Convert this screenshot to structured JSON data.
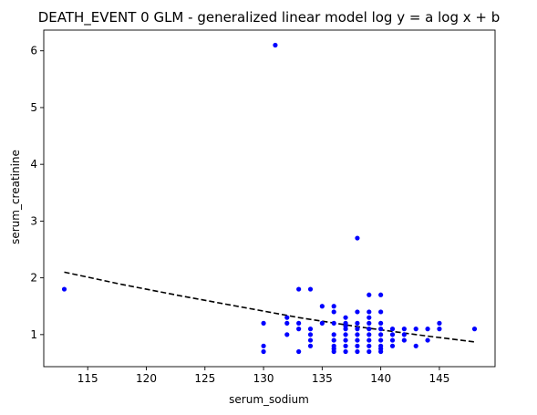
{
  "chart_data": {
    "type": "scatter",
    "title": "DEATH_EVENT 0 GLM - generalized linear model  log y = a log x + b",
    "xlabel": "serum_sodium",
    "ylabel": "serum_creatinine",
    "xlim": [
      111.25,
      149.75
    ],
    "ylim": [
      0.435,
      6.365
    ],
    "xticks": [
      115,
      120,
      125,
      130,
      135,
      140,
      145
    ],
    "yticks": [
      1,
      2,
      3,
      4,
      5,
      6
    ],
    "grid": false,
    "legend": "none",
    "colors": {
      "points": "#0000ff",
      "fit_line": "#000000"
    },
    "series": [
      {
        "kind": "points",
        "x": [
          113,
          131,
          138,
          130,
          130,
          130,
          132,
          132,
          132,
          133,
          133,
          133,
          133,
          134,
          134,
          134,
          134,
          134,
          135,
          135,
          136,
          136,
          136,
          136,
          136,
          136,
          136,
          136,
          137,
          137,
          137,
          137,
          137,
          137,
          137,
          137,
          138,
          138,
          138,
          138,
          138,
          138,
          138,
          139,
          139,
          139,
          139,
          139,
          139,
          139,
          139,
          139,
          140,
          140,
          140,
          140,
          140,
          140,
          140,
          140,
          140,
          141,
          141,
          141,
          141,
          142,
          142,
          142,
          143,
          143,
          144,
          144,
          145,
          145,
          148
        ],
        "y": [
          1.8,
          6.1,
          2.7,
          1.2,
          0.8,
          0.7,
          1.3,
          1.2,
          1.0,
          1.8,
          1.2,
          1.1,
          0.7,
          1.8,
          1.1,
          1.0,
          0.9,
          0.8,
          1.5,
          1.2,
          1.5,
          1.4,
          1.2,
          1.0,
          0.9,
          0.8,
          0.75,
          0.7,
          1.3,
          1.2,
          1.15,
          1.1,
          1.0,
          0.9,
          0.8,
          0.7,
          1.4,
          1.2,
          1.1,
          1.0,
          0.9,
          0.8,
          0.7,
          1.7,
          1.4,
          1.3,
          1.2,
          1.1,
          1.0,
          0.9,
          0.8,
          0.7,
          1.7,
          1.4,
          1.2,
          1.1,
          1.0,
          0.9,
          0.8,
          0.75,
          0.7,
          1.1,
          1.0,
          0.9,
          0.8,
          1.1,
          1.0,
          0.9,
          1.1,
          0.8,
          1.1,
          0.9,
          1.2,
          1.1,
          1.1
        ]
      },
      {
        "kind": "fit_line",
        "x": [
          113,
          118,
          123,
          128,
          133,
          138,
          143,
          148
        ],
        "y": [
          2.1,
          1.88,
          1.68,
          1.49,
          1.3,
          1.14,
          1.0,
          0.87
        ]
      }
    ]
  }
}
